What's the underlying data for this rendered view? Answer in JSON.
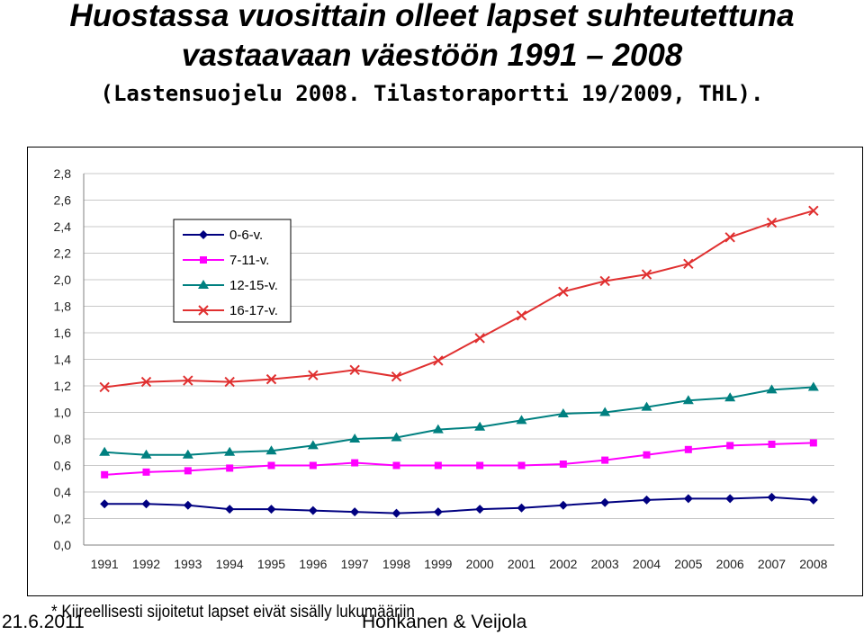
{
  "header": {
    "line1": "Huostassa vuosittain olleet lapset suhteutettuna",
    "line2": "vastaavaan väestöön 1991 – 2008",
    "line3": "(Lastensuojelu 2008. Tilastoraportti 19/2009, THL)."
  },
  "footnote": "* Kiireellisesti sijoitetut lapset eivät sisälly lukumääriin",
  "footer": {
    "date": "21.6.2011",
    "authors": "Honkanen & Veijola"
  },
  "chart_data": {
    "type": "line",
    "title": "",
    "xlabel": "",
    "ylabel": "",
    "ylim": [
      0,
      2.8
    ],
    "yticks": [
      "0,0",
      "0,2",
      "0,4",
      "0,6",
      "0,8",
      "1,0",
      "1,2",
      "1,4",
      "1,6",
      "1,8",
      "2,0",
      "2,2",
      "2,4",
      "2,6",
      "2,8"
    ],
    "grid": true,
    "legend_position": "top-left",
    "categories": [
      "1991",
      "1992",
      "1993",
      "1994",
      "1995",
      "1996",
      "1997",
      "1998",
      "1999",
      "2000",
      "2001",
      "2002",
      "2003",
      "2004",
      "2005",
      "2006",
      "2007",
      "2008"
    ],
    "series": [
      {
        "name": "0-6-v.",
        "color": "#000080",
        "marker": "diamond",
        "values": [
          0.31,
          0.31,
          0.3,
          0.27,
          0.27,
          0.26,
          0.25,
          0.24,
          0.25,
          0.27,
          0.28,
          0.3,
          0.32,
          0.34,
          0.35,
          0.35,
          0.36,
          0.34
        ]
      },
      {
        "name": "7-11-v.",
        "color": "#ff00ff",
        "marker": "square",
        "values": [
          0.53,
          0.55,
          0.56,
          0.58,
          0.6,
          0.6,
          0.62,
          0.6,
          0.6,
          0.6,
          0.6,
          0.61,
          0.64,
          0.68,
          0.72,
          0.75,
          0.76,
          0.77
        ]
      },
      {
        "name": "12-15-v.",
        "color": "#008080",
        "marker": "triangle",
        "values": [
          0.7,
          0.68,
          0.68,
          0.7,
          0.71,
          0.75,
          0.8,
          0.81,
          0.87,
          0.89,
          0.94,
          0.99,
          1.0,
          1.04,
          1.09,
          1.11,
          1.17,
          1.19
        ]
      },
      {
        "name": "16-17-v.",
        "color": "#e03030",
        "marker": "x",
        "values": [
          1.19,
          1.23,
          1.24,
          1.23,
          1.25,
          1.28,
          1.32,
          1.27,
          1.39,
          1.56,
          1.73,
          1.91,
          1.99,
          2.04,
          2.12,
          2.32,
          2.43,
          2.52
        ]
      }
    ]
  }
}
